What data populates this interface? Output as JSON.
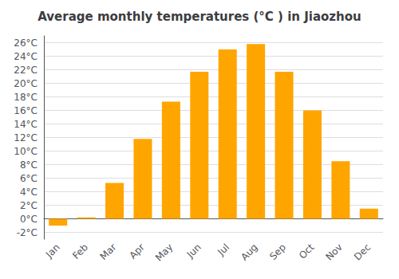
{
  "chart_data": {
    "type": "bar",
    "title": "Average monthly temperatures (°C ) in Jiaozhou",
    "categories": [
      "Jan",
      "Feb",
      "Mar",
      "Apr",
      "May",
      "Jun",
      "Jul",
      "Aug",
      "Sep",
      "Oct",
      "Nov",
      "Dec"
    ],
    "values": [
      -1.0,
      0.2,
      5.3,
      11.8,
      17.3,
      21.7,
      25.0,
      25.8,
      21.7,
      16.0,
      8.5,
      1.5
    ],
    "color": "#FFA500",
    "ylim": [
      -3,
      27
    ],
    "yticks": [
      {
        "value": -2,
        "label": "-2°C"
      },
      {
        "value": 0,
        "label": "0°C"
      },
      {
        "value": 2,
        "label": "2°C"
      },
      {
        "value": 4,
        "label": "4°C"
      },
      {
        "value": 6,
        "label": "6°C"
      },
      {
        "value": 8,
        "label": "8°C"
      },
      {
        "value": 10,
        "label": "10°C"
      },
      {
        "value": 12,
        "label": "12°C"
      },
      {
        "value": 14,
        "label": "14°C"
      },
      {
        "value": 16,
        "label": "16°C"
      },
      {
        "value": 18,
        "label": "18°C"
      },
      {
        "value": 20,
        "label": "20°C"
      },
      {
        "value": 22,
        "label": "22°C"
      },
      {
        "value": 24,
        "label": "24°C"
      },
      {
        "value": 26,
        "label": "26°C"
      }
    ],
    "grid": true
  }
}
